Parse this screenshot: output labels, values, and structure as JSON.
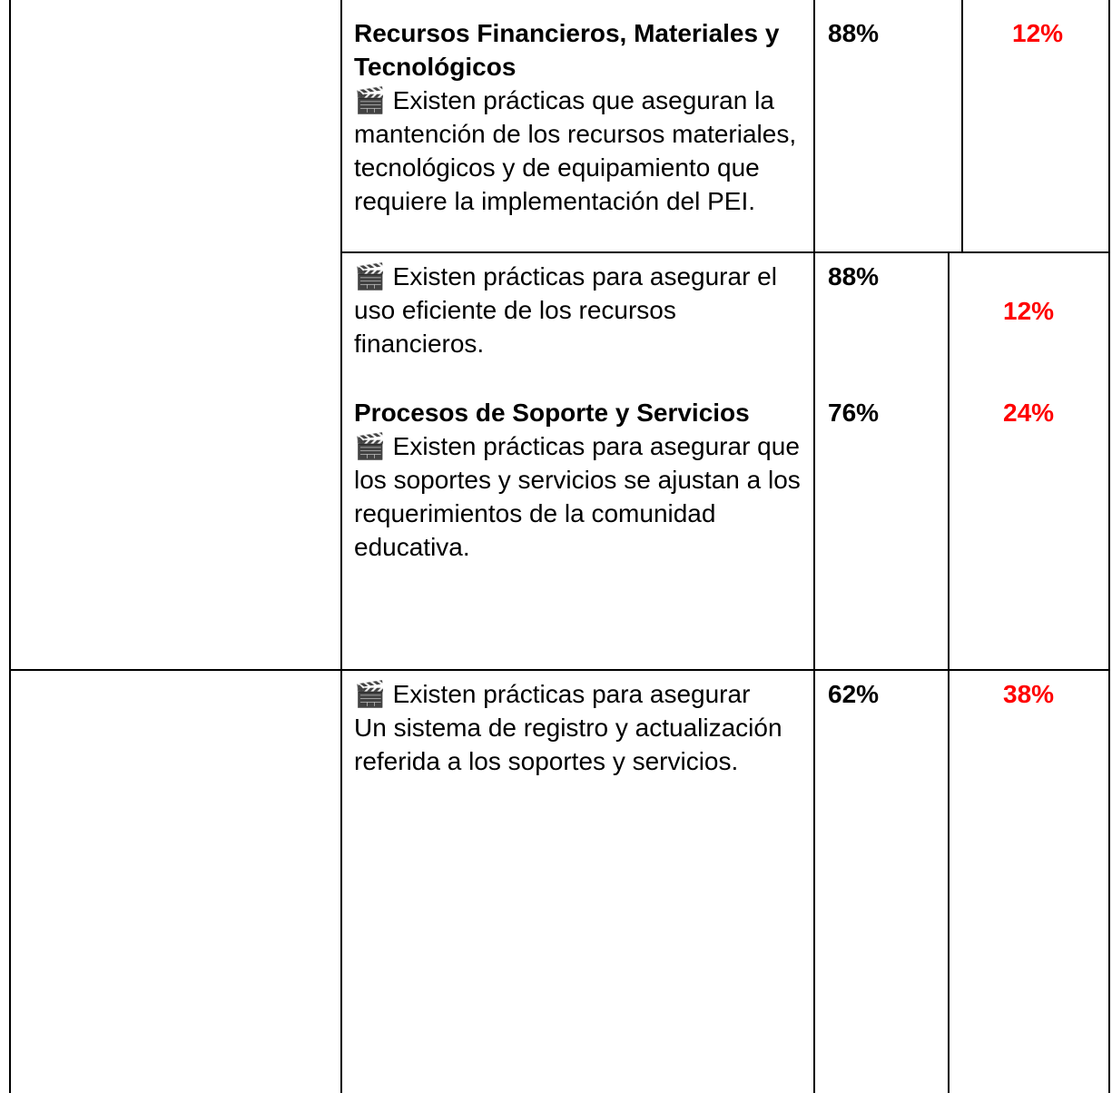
{
  "rows": [
    {
      "heading": "Recursos Financieros, Materiales y Tecnológicos",
      "paragraphs": [
        "🎬 Existen prácticas que aseguran la mantención de los recursos materiales, tecnológicos y de equipamiento que requiere la implementación del PEI."
      ],
      "values": [
        "88%",
        "12%"
      ]
    },
    {
      "paragraphs": [
        "🎬 Existen prácticas para asegurar el uso eficiente de los recursos financieros."
      ],
      "values": [
        "88%",
        "12%"
      ]
    },
    {
      "heading": "Procesos de Soporte y Servicios",
      "paragraphs": [
        "🎬 Existen prácticas para asegurar que los soportes y servicios se ajustan a los requerimientos de la comunidad educativa."
      ],
      "values": [
        "76%",
        "24%"
      ]
    },
    {
      "paragraphs": [
        "🎬 Existen prácticas para asegurar",
        "Un sistema de registro y actualización referida a los soportes y servicios."
      ],
      "values": [
        "62%",
        "38%"
      ]
    }
  ]
}
